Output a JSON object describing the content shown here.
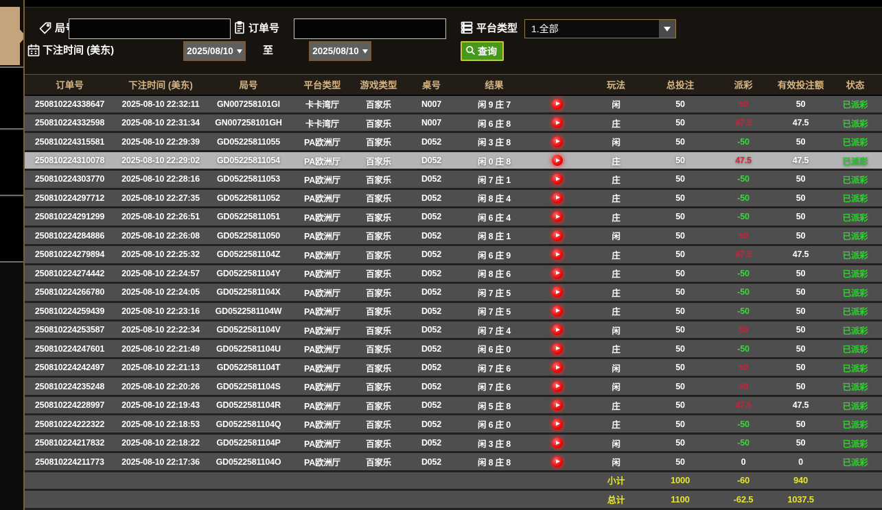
{
  "colors": {
    "header_gold": "#d6b582",
    "win_red": "#c4253b",
    "loss_green": "#3ed63e",
    "summary_yellow": "#e6e630",
    "status_green": "#2fd32f",
    "query_button_green": "#46991b",
    "sidebar_active_tan": "#c4a47c",
    "row_gray": "#4e4e4e",
    "highlight_row_gray": "#b4b4b4"
  },
  "filters": {
    "game_no_label": "局号",
    "game_no_value": "",
    "order_no_label": "订单号",
    "order_no_value": "",
    "platform_label": "平台类型",
    "platform_value": "1.全部",
    "bet_time_label": "下注时间 (美东)",
    "date_from": "2025/08/10",
    "to_label": "至",
    "date_to": "2025/08/10",
    "query_label": "查询"
  },
  "icons": {
    "game_no": "tag-icon",
    "order_no": "clipboard-icon",
    "platform": "server-list-icon",
    "bet_time": "calendar-icon",
    "query": "magnifier-icon",
    "result_media": "play-video-icon"
  },
  "table": {
    "headers": [
      "订单号",
      "下注时间 (美东)",
      "局号",
      "平台类型",
      "游戏类型",
      "桌号",
      "结果",
      "",
      "玩法",
      "总投注",
      "派彩",
      "有效投注额",
      "状态"
    ],
    "rows": [
      {
        "order": "250810224338647",
        "time": "2025-08-10 22:32:11",
        "game_no": "GN007258101GI",
        "platform": "卡卡湾厅",
        "game_type": "百家乐",
        "table_no": "N007",
        "result": "闲 9 庄 7",
        "play": "闲",
        "total_bet": "50",
        "payout": "50",
        "valid_bet": "50",
        "status": "已派彩",
        "highlighted": false
      },
      {
        "order": "250810224332598",
        "time": "2025-08-10 22:31:34",
        "game_no": "GN007258101GH",
        "platform": "卡卡湾厅",
        "game_type": "百家乐",
        "table_no": "N007",
        "result": "闲 6 庄 8",
        "play": "庄",
        "total_bet": "50",
        "payout": "47.5",
        "valid_bet": "47.5",
        "status": "已派彩",
        "highlighted": false
      },
      {
        "order": "250810224315581",
        "time": "2025-08-10 22:29:39",
        "game_no": "GD05225811055",
        "platform": "PA欧洲厅",
        "game_type": "百家乐",
        "table_no": "D052",
        "result": "闲 3 庄 8",
        "play": "闲",
        "total_bet": "50",
        "payout": "-50",
        "valid_bet": "50",
        "status": "已派彩",
        "highlighted": false
      },
      {
        "order": "250810224310078",
        "time": "2025-08-10 22:29:02",
        "game_no": "GD05225811054",
        "platform": "PA欧洲厅",
        "game_type": "百家乐",
        "table_no": "D052",
        "result": "闲 0 庄 8",
        "play": "庄",
        "total_bet": "50",
        "payout": "47.5",
        "valid_bet": "47.5",
        "status": "已派彩",
        "highlighted": true
      },
      {
        "order": "250810224303770",
        "time": "2025-08-10 22:28:16",
        "game_no": "GD05225811053",
        "platform": "PA欧洲厅",
        "game_type": "百家乐",
        "table_no": "D052",
        "result": "闲 7 庄 1",
        "play": "庄",
        "total_bet": "50",
        "payout": "-50",
        "valid_bet": "50",
        "status": "已派彩",
        "highlighted": false
      },
      {
        "order": "250810224297712",
        "time": "2025-08-10 22:27:35",
        "game_no": "GD05225811052",
        "platform": "PA欧洲厅",
        "game_type": "百家乐",
        "table_no": "D052",
        "result": "闲 8 庄 4",
        "play": "庄",
        "total_bet": "50",
        "payout": "-50",
        "valid_bet": "50",
        "status": "已派彩",
        "highlighted": false
      },
      {
        "order": "250810224291299",
        "time": "2025-08-10 22:26:51",
        "game_no": "GD05225811051",
        "platform": "PA欧洲厅",
        "game_type": "百家乐",
        "table_no": "D052",
        "result": "闲 6 庄 4",
        "play": "庄",
        "total_bet": "50",
        "payout": "-50",
        "valid_bet": "50",
        "status": "已派彩",
        "highlighted": false
      },
      {
        "order": "250810224284886",
        "time": "2025-08-10 22:26:08",
        "game_no": "GD05225811050",
        "platform": "PA欧洲厅",
        "game_type": "百家乐",
        "table_no": "D052",
        "result": "闲 8 庄 1",
        "play": "闲",
        "total_bet": "50",
        "payout": "50",
        "valid_bet": "50",
        "status": "已派彩",
        "highlighted": false
      },
      {
        "order": "250810224279894",
        "time": "2025-08-10 22:25:32",
        "game_no": "GD0522581104Z",
        "platform": "PA欧洲厅",
        "game_type": "百家乐",
        "table_no": "D052",
        "result": "闲 6 庄 9",
        "play": "庄",
        "total_bet": "50",
        "payout": "47.5",
        "valid_bet": "47.5",
        "status": "已派彩",
        "highlighted": false
      },
      {
        "order": "250810224274442",
        "time": "2025-08-10 22:24:57",
        "game_no": "GD0522581104Y",
        "platform": "PA欧洲厅",
        "game_type": "百家乐",
        "table_no": "D052",
        "result": "闲 8 庄 6",
        "play": "庄",
        "total_bet": "50",
        "payout": "-50",
        "valid_bet": "50",
        "status": "已派彩",
        "highlighted": false
      },
      {
        "order": "250810224266780",
        "time": "2025-08-10 22:24:05",
        "game_no": "GD0522581104X",
        "platform": "PA欧洲厅",
        "game_type": "百家乐",
        "table_no": "D052",
        "result": "闲 7 庄 5",
        "play": "庄",
        "total_bet": "50",
        "payout": "-50",
        "valid_bet": "50",
        "status": "已派彩",
        "highlighted": false
      },
      {
        "order": "250810224259439",
        "time": "2025-08-10 22:23:16",
        "game_no": "GD0522581104W",
        "platform": "PA欧洲厅",
        "game_type": "百家乐",
        "table_no": "D052",
        "result": "闲 7 庄 5",
        "play": "庄",
        "total_bet": "50",
        "payout": "-50",
        "valid_bet": "50",
        "status": "已派彩",
        "highlighted": false
      },
      {
        "order": "250810224253587",
        "time": "2025-08-10 22:22:34",
        "game_no": "GD0522581104V",
        "platform": "PA欧洲厅",
        "game_type": "百家乐",
        "table_no": "D052",
        "result": "闲 7 庄 4",
        "play": "闲",
        "total_bet": "50",
        "payout": "50",
        "valid_bet": "50",
        "status": "已派彩",
        "highlighted": false
      },
      {
        "order": "250810224247601",
        "time": "2025-08-10 22:21:49",
        "game_no": "GD0522581104U",
        "platform": "PA欧洲厅",
        "game_type": "百家乐",
        "table_no": "D052",
        "result": "闲 6 庄 0",
        "play": "庄",
        "total_bet": "50",
        "payout": "-50",
        "valid_bet": "50",
        "status": "已派彩",
        "highlighted": false
      },
      {
        "order": "250810224242497",
        "time": "2025-08-10 22:21:13",
        "game_no": "GD0522581104T",
        "platform": "PA欧洲厅",
        "game_type": "百家乐",
        "table_no": "D052",
        "result": "闲 7 庄 6",
        "play": "闲",
        "total_bet": "50",
        "payout": "50",
        "valid_bet": "50",
        "status": "已派彩",
        "highlighted": false
      },
      {
        "order": "250810224235248",
        "time": "2025-08-10 22:20:26",
        "game_no": "GD0522581104S",
        "platform": "PA欧洲厅",
        "game_type": "百家乐",
        "table_no": "D052",
        "result": "闲 7 庄 6",
        "play": "闲",
        "total_bet": "50",
        "payout": "50",
        "valid_bet": "50",
        "status": "已派彩",
        "highlighted": false
      },
      {
        "order": "250810224228997",
        "time": "2025-08-10 22:19:43",
        "game_no": "GD0522581104R",
        "platform": "PA欧洲厅",
        "game_type": "百家乐",
        "table_no": "D052",
        "result": "闲 5 庄 8",
        "play": "庄",
        "total_bet": "50",
        "payout": "47.5",
        "valid_bet": "47.5",
        "status": "已派彩",
        "highlighted": false
      },
      {
        "order": "250810224222322",
        "time": "2025-08-10 22:18:53",
        "game_no": "GD0522581104Q",
        "platform": "PA欧洲厅",
        "game_type": "百家乐",
        "table_no": "D052",
        "result": "闲 6 庄 0",
        "play": "庄",
        "total_bet": "50",
        "payout": "-50",
        "valid_bet": "50",
        "status": "已派彩",
        "highlighted": false
      },
      {
        "order": "250810224217832",
        "time": "2025-08-10 22:18:22",
        "game_no": "GD0522581104P",
        "platform": "PA欧洲厅",
        "game_type": "百家乐",
        "table_no": "D052",
        "result": "闲 3 庄 8",
        "play": "闲",
        "total_bet": "50",
        "payout": "-50",
        "valid_bet": "50",
        "status": "已派彩",
        "highlighted": false
      },
      {
        "order": "250810224211773",
        "time": "2025-08-10 22:17:36",
        "game_no": "GD0522581104O",
        "platform": "PA欧洲厅",
        "game_type": "百家乐",
        "table_no": "D052",
        "result": "闲 8 庄 8",
        "play": "闲",
        "total_bet": "50",
        "payout": "0",
        "valid_bet": "0",
        "status": "已派彩",
        "highlighted": false
      }
    ],
    "subtotal": {
      "label": "小计",
      "total_bet": "1000",
      "payout": "-60",
      "valid_bet": "940"
    },
    "total": {
      "label": "总计",
      "total_bet": "1100",
      "payout": "-62.5",
      "valid_bet": "1037.5"
    }
  }
}
